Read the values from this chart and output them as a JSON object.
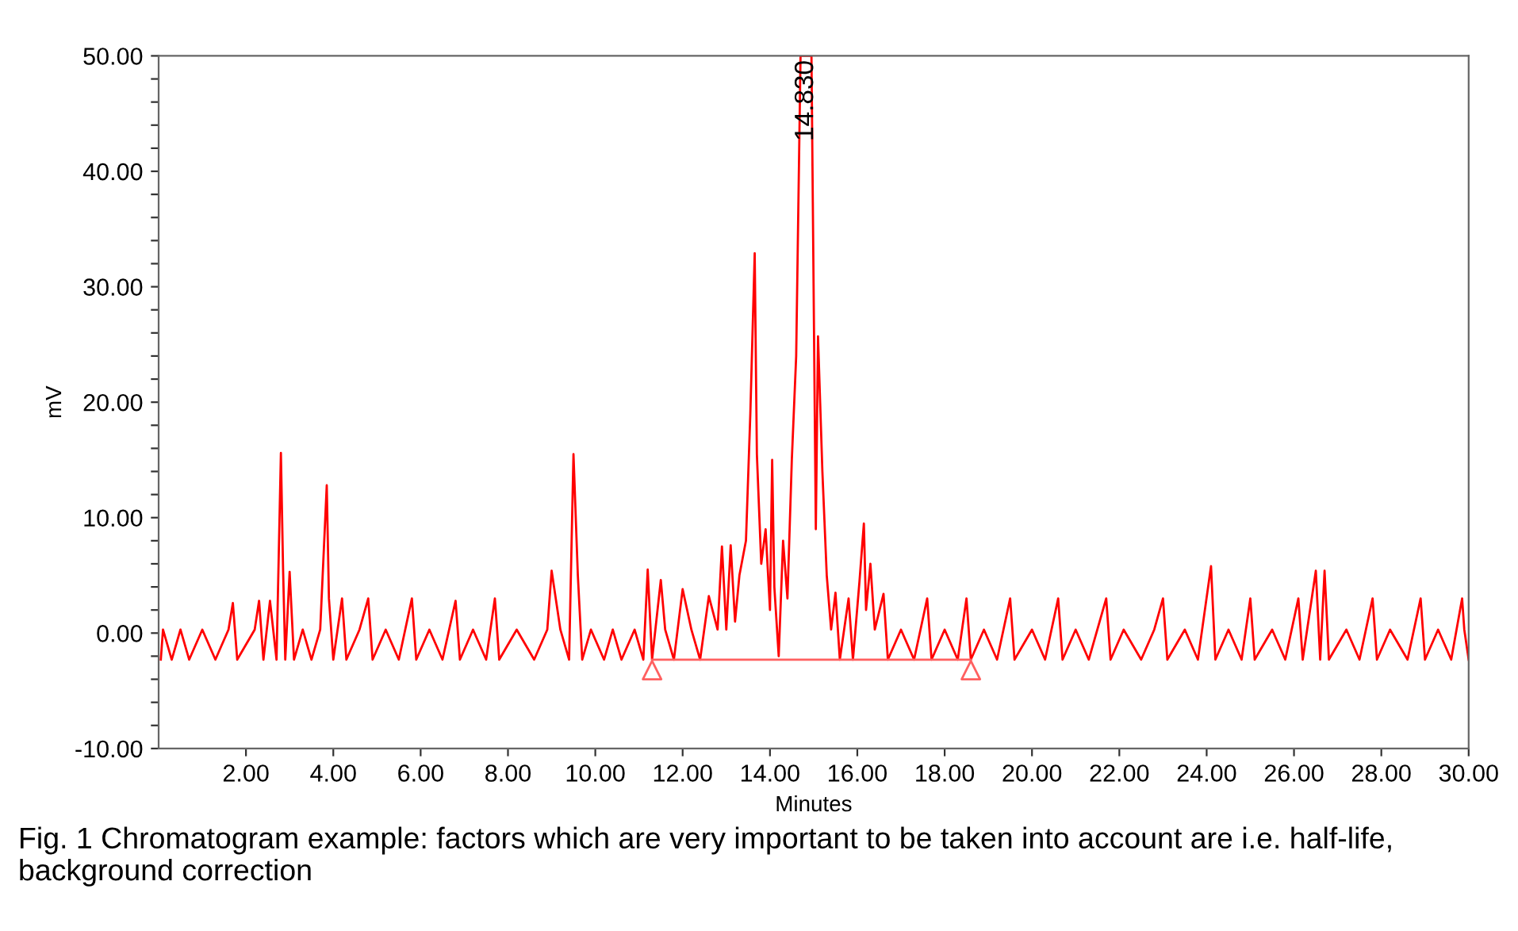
{
  "chart_data": {
    "type": "line",
    "xlabel": "Minutes",
    "ylabel": "mV",
    "xlim": [
      0,
      30
    ],
    "ylim": [
      -10,
      50
    ],
    "xticks": [
      {
        "value": 2,
        "label": "2.00"
      },
      {
        "value": 4,
        "label": "4.00"
      },
      {
        "value": 6,
        "label": "6.00"
      },
      {
        "value": 8,
        "label": "8.00"
      },
      {
        "value": 10,
        "label": "10.00"
      },
      {
        "value": 12,
        "label": "12.00"
      },
      {
        "value": 14,
        "label": "14.00"
      },
      {
        "value": 16,
        "label": "16.00"
      },
      {
        "value": 18,
        "label": "18.00"
      },
      {
        "value": 20,
        "label": "20.00"
      },
      {
        "value": 22,
        "label": "22.00"
      },
      {
        "value": 24,
        "label": "24.00"
      },
      {
        "value": 26,
        "label": "26.00"
      },
      {
        "value": 28,
        "label": "28.00"
      },
      {
        "value": 30,
        "label": "30.00"
      }
    ],
    "yticks": [
      {
        "value": -10,
        "label": "-10.00"
      },
      {
        "value": -8,
        "label": null
      },
      {
        "value": -6,
        "label": null
      },
      {
        "value": -4,
        "label": null
      },
      {
        "value": -2,
        "label": null
      },
      {
        "value": 0,
        "label": "0.00"
      },
      {
        "value": 2,
        "label": null
      },
      {
        "value": 4,
        "label": null
      },
      {
        "value": 6,
        "label": null
      },
      {
        "value": 8,
        "label": null
      },
      {
        "value": 10,
        "label": "10.00"
      },
      {
        "value": 12,
        "label": null
      },
      {
        "value": 14,
        "label": null
      },
      {
        "value": 16,
        "label": null
      },
      {
        "value": 18,
        "label": null
      },
      {
        "value": 20,
        "label": "20.00"
      },
      {
        "value": 22,
        "label": null
      },
      {
        "value": 24,
        "label": null
      },
      {
        "value": 26,
        "label": null
      },
      {
        "value": 28,
        "label": null
      },
      {
        "value": 30,
        "label": "30.00"
      },
      {
        "value": 32,
        "label": null
      },
      {
        "value": 34,
        "label": null
      },
      {
        "value": 36,
        "label": null
      },
      {
        "value": 38,
        "label": null
      },
      {
        "value": 40,
        "label": "40.00"
      },
      {
        "value": 42,
        "label": null
      },
      {
        "value": 44,
        "label": null
      },
      {
        "value": 46,
        "label": null
      },
      {
        "value": 48,
        "label": null
      },
      {
        "value": 50,
        "label": "50.00"
      }
    ],
    "grid": false,
    "legend": false,
    "series": [
      {
        "color": "#ff0000",
        "x": [
          0.05,
          0.1,
          0.3,
          0.5,
          0.7,
          1.0,
          1.3,
          1.6,
          1.7,
          1.8,
          2.2,
          2.3,
          2.4,
          2.55,
          2.7,
          2.8,
          2.85,
          2.9,
          3.0,
          3.1,
          3.3,
          3.5,
          3.7,
          3.85,
          3.9,
          4.0,
          4.2,
          4.3,
          4.6,
          4.8,
          4.9,
          5.2,
          5.5,
          5.8,
          5.9,
          6.2,
          6.5,
          6.8,
          6.9,
          7.2,
          7.5,
          7.7,
          7.8,
          8.2,
          8.6,
          8.9,
          9.0,
          9.2,
          9.4,
          9.5,
          9.6,
          9.7,
          9.9,
          10.2,
          10.4,
          10.6,
          10.9,
          11.1,
          11.2,
          11.3,
          11.5,
          11.6,
          11.8,
          12.0,
          12.2,
          12.4,
          12.6,
          12.8,
          12.9,
          13.0,
          13.1,
          13.2,
          13.3,
          13.45,
          13.55,
          13.65,
          13.7,
          13.8,
          13.9,
          14.0,
          14.05,
          14.1,
          14.2,
          14.3,
          14.4,
          14.5,
          14.6,
          14.7,
          14.95,
          15.05,
          15.1,
          15.2,
          15.3,
          15.4,
          15.5,
          15.6,
          15.8,
          15.9,
          16.05,
          16.15,
          16.2,
          16.3,
          16.4,
          16.6,
          16.7,
          17.0,
          17.3,
          17.6,
          17.7,
          18.0,
          18.3,
          18.5,
          18.6,
          18.9,
          19.2,
          19.5,
          19.6,
          20.0,
          20.3,
          20.6,
          20.7,
          21.0,
          21.3,
          21.7,
          21.8,
          22.1,
          22.5,
          22.8,
          23.0,
          23.1,
          23.5,
          23.8,
          24.1,
          24.2,
          24.5,
          24.8,
          25.0,
          25.1,
          25.5,
          25.8,
          26.1,
          26.2,
          26.5,
          26.6,
          26.7,
          26.8,
          27.2,
          27.5,
          27.8,
          27.9,
          28.2,
          28.6,
          28.9,
          29.0,
          29.3,
          29.6,
          29.85,
          29.9,
          30.0
        ],
        "values": [
          -2.3,
          0.3,
          -2.3,
          0.3,
          -2.3,
          0.3,
          -2.3,
          0.3,
          2.6,
          -2.3,
          0.3,
          2.8,
          -2.3,
          2.8,
          -2.3,
          15.6,
          5.5,
          -2.3,
          5.3,
          -2.3,
          0.3,
          -2.3,
          0.3,
          12.8,
          3.0,
          -2.3,
          3.0,
          -2.3,
          0.3,
          3.0,
          -2.3,
          0.3,
          -2.3,
          3.0,
          -2.3,
          0.3,
          -2.3,
          2.8,
          -2.3,
          0.3,
          -2.3,
          3.0,
          -2.3,
          0.3,
          -2.3,
          0.3,
          5.4,
          0.3,
          -2.3,
          15.5,
          5.0,
          -2.3,
          0.3,
          -2.3,
          0.3,
          -2.3,
          0.3,
          -2.3,
          5.5,
          -2.3,
          4.6,
          0.3,
          -2.3,
          3.8,
          0.3,
          -2.3,
          3.2,
          0.3,
          7.5,
          0.3,
          7.6,
          1.0,
          5.0,
          8.0,
          19.0,
          32.9,
          15.5,
          6.0,
          9.0,
          2.0,
          15.0,
          4.0,
          -2.0,
          8.0,
          3.0,
          15.0,
          24.0,
          50,
          50,
          9.0,
          25.7,
          14.0,
          5.0,
          0.3,
          3.5,
          -2.3,
          3.0,
          -2.3,
          4.5,
          9.5,
          2.0,
          6.0,
          0.3,
          3.4,
          -2.3,
          0.3,
          -2.3,
          3.0,
          -2.3,
          0.3,
          -2.3,
          3.0,
          -2.3,
          0.3,
          -2.3,
          3.0,
          -2.3,
          0.3,
          -2.3,
          3.0,
          -2.3,
          0.3,
          -2.3,
          3.0,
          -2.3,
          0.3,
          -2.3,
          0.3,
          3.0,
          -2.3,
          0.3,
          -2.3,
          5.8,
          -2.3,
          0.3,
          -2.3,
          3.0,
          -2.3,
          0.3,
          -2.3,
          3.0,
          -2.3,
          5.4,
          -2.3,
          5.4,
          -2.3,
          0.3,
          -2.3,
          3.0,
          -2.3,
          0.3,
          -2.3,
          3.0,
          -2.3,
          0.3,
          -2.3,
          3.0,
          0.3,
          -2.3
        ]
      },
      {
        "color": "#ff6060",
        "type": "line",
        "x": [
          11.3,
          18.6
        ],
        "values": [
          -2.3,
          -2.3
        ]
      },
      {
        "color": "#ff6060",
        "type": "scatter",
        "marker": "triangle",
        "x": [
          11.3,
          18.6
        ],
        "values": [
          -3.2,
          -3.2
        ]
      }
    ],
    "annotations": [
      {
        "text": "14.830",
        "x": 14.83,
        "y": 50
      },
      "Fig. 1 Chromatogram example: factors which are very important to be taken into account are i.e. half-life, background correction"
    ]
  }
}
